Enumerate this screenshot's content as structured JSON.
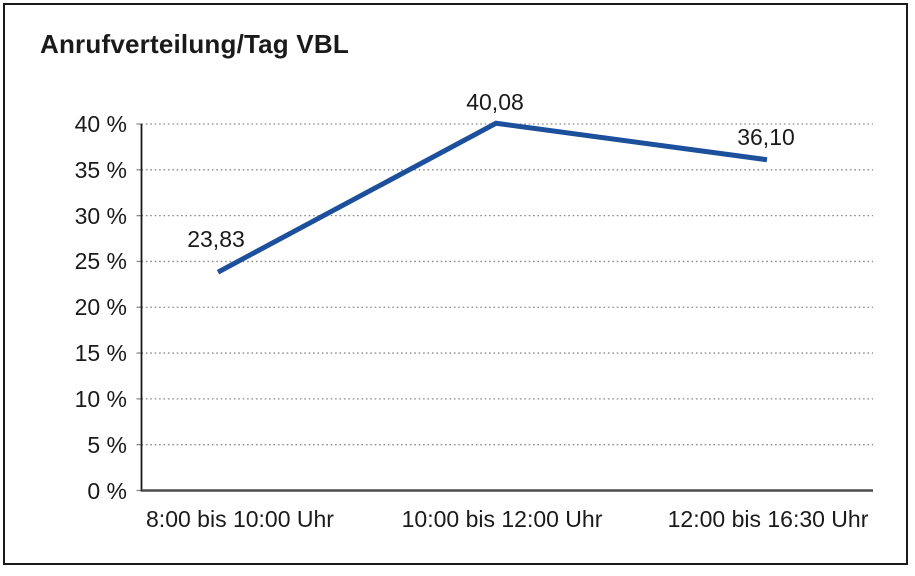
{
  "title": "Anrufverteilung/Tag VBL",
  "chart_data": {
    "type": "line",
    "title": "Anrufverteilung/Tag VBL",
    "categories": [
      "8:00 bis 10:00 Uhr",
      "10:00 bis 12:00 Uhr",
      "12:00 bis 16:30 Uhr"
    ],
    "values": [
      23.83,
      40.08,
      36.1
    ],
    "data_labels": [
      "23,83",
      "40,08",
      "36,10"
    ],
    "xlabel": "",
    "ylabel": "",
    "ylim": [
      0,
      40
    ],
    "ytick_step": 5,
    "ytick_labels": [
      "0 %",
      "5 %",
      "10 %",
      "15 %",
      "20 %",
      "25 %",
      "30 %",
      "35 %",
      "40 %"
    ],
    "grid": "horizontal-dotted",
    "legend": "none",
    "markers": "none"
  },
  "colors": {
    "line": "#1c4f9c",
    "grid": "#8a8a8a",
    "tick": "#8a8a8a",
    "y_axis": "#1a1a1a",
    "x_baseline": "#4d4d4d",
    "text": "#1a1a1a",
    "border": "#1a1a1a",
    "background": "#ffffff"
  }
}
